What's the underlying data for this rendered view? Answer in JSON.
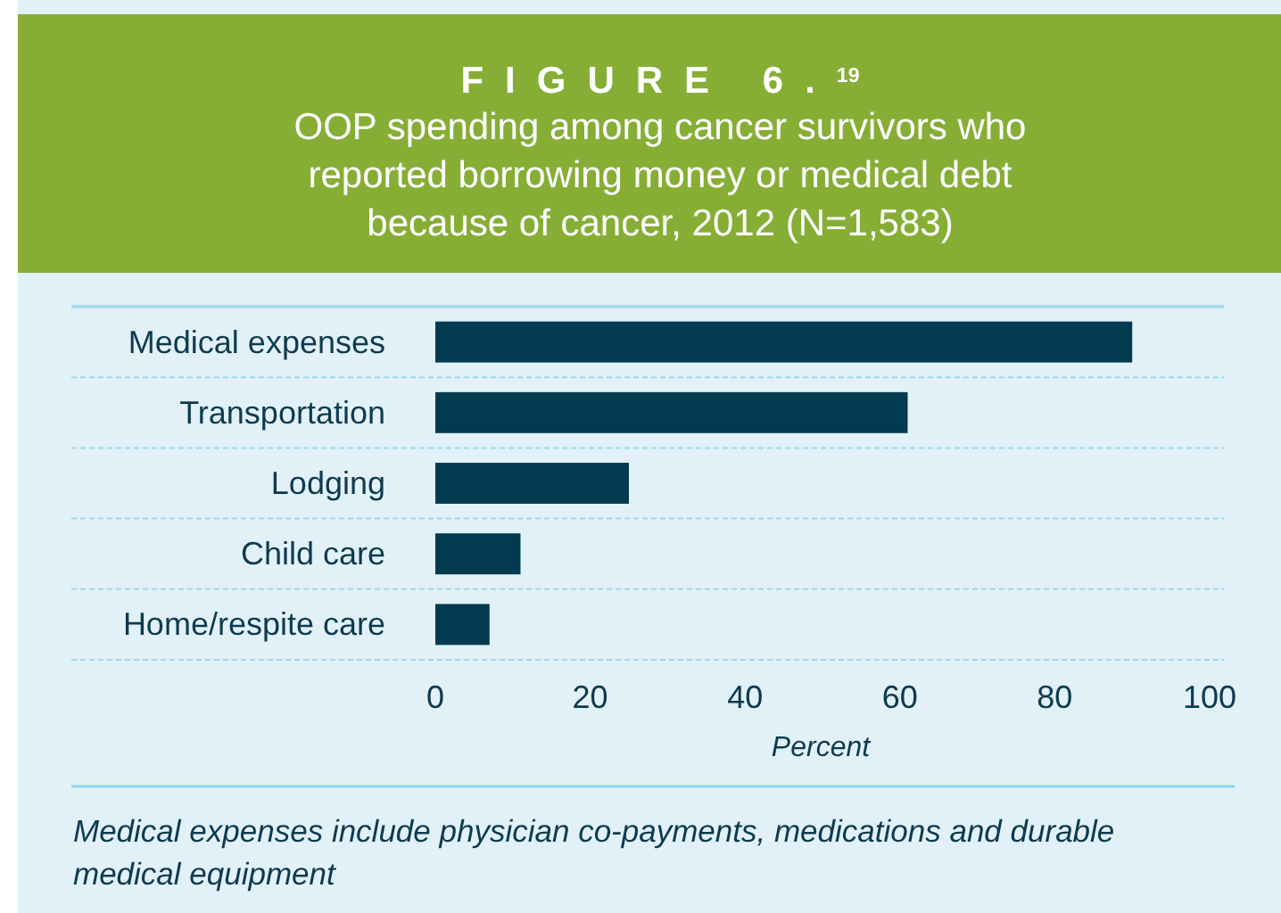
{
  "chart_data": {
    "type": "bar",
    "orientation": "horizontal",
    "title": "FIGURE 6.$^{19}$",
    "subtitle": "OOP spending among cancer survivors who reported borrowing money or medical debt because of cancer, 2012 (N=1,583)",
    "categories": [
      "Medical expenses",
      "Transportation",
      "Lodging",
      "Child care",
      "Home/respite care"
    ],
    "values": [
      90,
      61,
      25,
      11,
      7
    ],
    "color": "#023a50",
    "xlim": [
      0,
      100
    ],
    "xticks": [
      0,
      20,
      40,
      60,
      80,
      100
    ],
    "xlabel": "Percent",
    "grid": "y",
    "annotations": [
      "Medical expenses include physician co-payments, medications and durable medical equipment"
    ]
  }
}
